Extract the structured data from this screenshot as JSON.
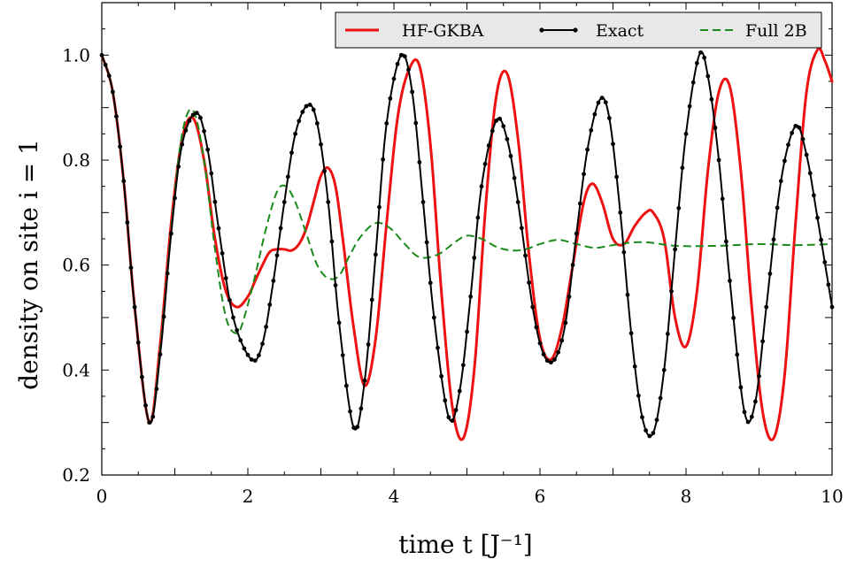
{
  "chart_data": {
    "type": "line",
    "xlabel": "time t [J⁻¹]",
    "ylabel": "density on site i = 1",
    "xlim": [
      0,
      10
    ],
    "ylim": [
      0.2,
      1.1
    ],
    "x_ticks": [
      "0",
      "2",
      "4",
      "6",
      "8",
      "10"
    ],
    "y_ticks": [
      "0.2",
      "0.4",
      "0.6",
      "0.8",
      "1.0"
    ],
    "grid": false,
    "legend_position": "top-right",
    "series": [
      {
        "name": "HF-GKBA",
        "color": "#ee1111",
        "style": "solid",
        "x": [
          0,
          0.15,
          0.3,
          0.45,
          0.65,
          0.8,
          0.95,
          1.1,
          1.25,
          1.4,
          1.55,
          1.7,
          1.85,
          2.0,
          2.1,
          2.2,
          2.3,
          2.4,
          2.5,
          2.6,
          2.7,
          2.8,
          2.9,
          3.0,
          3.1,
          3.2,
          3.3,
          3.45,
          3.6,
          3.75,
          3.9,
          4.05,
          4.2,
          4.35,
          4.5,
          4.65,
          4.8,
          4.95,
          5.1,
          5.25,
          5.4,
          5.55,
          5.7,
          5.85,
          6.0,
          6.15,
          6.3,
          6.45,
          6.6,
          6.72,
          6.85,
          7.0,
          7.15,
          7.3,
          7.45,
          7.55,
          7.7,
          7.85,
          8.0,
          8.15,
          8.3,
          8.45,
          8.6,
          8.75,
          8.9,
          9.05,
          9.2,
          9.35,
          9.5,
          9.65,
          9.8,
          9.9,
          10.0
        ],
        "values": [
          1.0,
          0.93,
          0.76,
          0.52,
          0.3,
          0.45,
          0.68,
          0.84,
          0.88,
          0.8,
          0.65,
          0.55,
          0.52,
          0.54,
          0.57,
          0.6,
          0.625,
          0.63,
          0.63,
          0.628,
          0.64,
          0.67,
          0.72,
          0.77,
          0.785,
          0.75,
          0.65,
          0.48,
          0.37,
          0.46,
          0.68,
          0.88,
          0.97,
          0.98,
          0.83,
          0.55,
          0.33,
          0.27,
          0.4,
          0.7,
          0.92,
          0.965,
          0.84,
          0.62,
          0.46,
          0.42,
          0.48,
          0.6,
          0.72,
          0.755,
          0.72,
          0.65,
          0.64,
          0.675,
          0.7,
          0.7,
          0.65,
          0.5,
          0.445,
          0.55,
          0.78,
          0.93,
          0.94,
          0.78,
          0.52,
          0.32,
          0.27,
          0.39,
          0.68,
          0.93,
          1.01,
          0.99,
          0.95
        ]
      },
      {
        "name": "Exact",
        "color": "#000000",
        "style": "solid-markers",
        "x": [
          0,
          0.15,
          0.3,
          0.45,
          0.65,
          0.8,
          0.95,
          1.1,
          1.3,
          1.45,
          1.6,
          1.8,
          2.05,
          2.2,
          2.35,
          2.5,
          2.65,
          2.82,
          2.95,
          3.1,
          3.25,
          3.45,
          3.6,
          3.75,
          3.9,
          4.1,
          4.25,
          4.4,
          4.55,
          4.75,
          4.9,
          5.05,
          5.2,
          5.4,
          5.55,
          5.7,
          5.9,
          6.05,
          6.2,
          6.35,
          6.5,
          6.65,
          6.82,
          6.95,
          7.1,
          7.25,
          7.4,
          7.55,
          7.7,
          7.85,
          8.0,
          8.18,
          8.3,
          8.45,
          8.6,
          8.8,
          8.95,
          9.1,
          9.3,
          9.5,
          9.65,
          9.8,
          10.0
        ],
        "values": [
          1.0,
          0.93,
          0.76,
          0.52,
          0.3,
          0.43,
          0.66,
          0.83,
          0.89,
          0.82,
          0.67,
          0.5,
          0.42,
          0.45,
          0.57,
          0.72,
          0.85,
          0.905,
          0.87,
          0.72,
          0.49,
          0.29,
          0.38,
          0.62,
          0.87,
          1.0,
          0.93,
          0.72,
          0.5,
          0.31,
          0.36,
          0.54,
          0.75,
          0.875,
          0.84,
          0.72,
          0.52,
          0.43,
          0.42,
          0.49,
          0.66,
          0.82,
          0.915,
          0.88,
          0.7,
          0.47,
          0.31,
          0.28,
          0.4,
          0.63,
          0.85,
          1.0,
          0.96,
          0.8,
          0.57,
          0.32,
          0.34,
          0.52,
          0.76,
          0.865,
          0.81,
          0.69,
          0.52
        ]
      },
      {
        "name": "Full 2B",
        "color": "#1a8a1a",
        "style": "dashed",
        "x": [
          0,
          0.15,
          0.3,
          0.45,
          0.65,
          0.8,
          0.95,
          1.1,
          1.25,
          1.4,
          1.55,
          1.7,
          1.85,
          1.95,
          2.1,
          2.25,
          2.4,
          2.52,
          2.65,
          2.8,
          2.95,
          3.1,
          3.25,
          3.4,
          3.55,
          3.75,
          3.95,
          4.15,
          4.35,
          4.6,
          4.85,
          5.0,
          5.2,
          5.4,
          5.6,
          5.8,
          6.0,
          6.25,
          6.5,
          6.75,
          7.0,
          7.25,
          7.5,
          7.75,
          8.0,
          8.5,
          9.0,
          9.5,
          10.0
        ],
        "values": [
          1.0,
          0.93,
          0.76,
          0.52,
          0.3,
          0.44,
          0.67,
          0.85,
          0.895,
          0.8,
          0.63,
          0.5,
          0.47,
          0.5,
          0.58,
          0.67,
          0.74,
          0.75,
          0.72,
          0.66,
          0.6,
          0.575,
          0.58,
          0.62,
          0.655,
          0.68,
          0.67,
          0.64,
          0.615,
          0.62,
          0.645,
          0.656,
          0.65,
          0.635,
          0.628,
          0.63,
          0.64,
          0.648,
          0.64,
          0.633,
          0.638,
          0.643,
          0.643,
          0.638,
          0.636,
          0.637,
          0.64,
          0.638,
          0.64
        ]
      }
    ]
  }
}
